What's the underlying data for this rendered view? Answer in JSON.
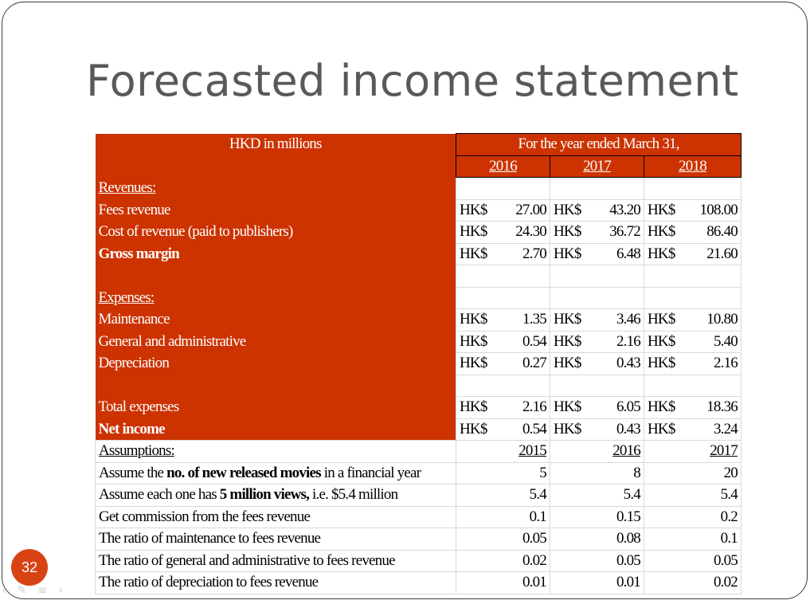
{
  "title": "Forecasted income statement",
  "slide_number": "32",
  "table": {
    "header_label": "HKD in millions",
    "header_period": "For the year ended March 31,",
    "years": [
      "2016",
      "2017",
      "2018"
    ],
    "currency": "HK$",
    "revenues_label": "Revenues:",
    "fees_revenue": {
      "label": "Fees revenue",
      "values": [
        "27.00",
        "43.20",
        "108.00"
      ]
    },
    "cost_of_revenue": {
      "label": "Cost of revenue (paid to publishers)",
      "values": [
        "24.30",
        "36.72",
        "86.40"
      ]
    },
    "gross_margin": {
      "label": "Gross margin",
      "values": [
        "2.70",
        "6.48",
        "21.60"
      ]
    },
    "expenses_label": "Expenses:",
    "maintenance": {
      "label": "Maintenance",
      "values": [
        "1.35",
        "3.46",
        "10.80"
      ]
    },
    "gen_admin": {
      "label": "General and administrative",
      "values": [
        "0.54",
        "2.16",
        "5.40"
      ]
    },
    "depreciation": {
      "label": "Depreciation",
      "values": [
        "0.27",
        "0.43",
        "2.16"
      ]
    },
    "total_expenses": {
      "label": "Total expenses",
      "values": [
        "2.16",
        "6.05",
        "18.36"
      ]
    },
    "net_income": {
      "label": "Net income",
      "values": [
        "0.54",
        "0.43",
        "3.24"
      ]
    }
  },
  "assumptions": {
    "label": "Assumptions:",
    "years": [
      "2015",
      "2016",
      "2017"
    ],
    "new_movies": {
      "pre": "Assume the ",
      "bold": "no. of new released movies",
      "post": " in a financial year",
      "values": [
        "5",
        "8",
        "20"
      ]
    },
    "views": {
      "pre": "Assume each one has ",
      "bold": "5 million views,",
      "post": " i.e. $5.4 million",
      "values": [
        "5.4",
        "5.4",
        "5.4"
      ]
    },
    "commission": {
      "label": "Get commission from the fees revenue",
      "values": [
        "0.1",
        "0.15",
        "0.2"
      ]
    },
    "maint_ratio": {
      "label": "The ratio of maintenance to fees revenue",
      "values": [
        "0.05",
        "0.08",
        "0.1"
      ]
    },
    "ga_ratio": {
      "label": "The ratio of general and administrative to fees revenue",
      "values": [
        "0.02",
        "0.05",
        "0.05"
      ]
    },
    "dep_ratio": {
      "label": "The ratio of depreciation to fees revenue",
      "values": [
        "0.01",
        "0.01",
        "0.02"
      ]
    }
  },
  "colors": {
    "table_red": "#cc3300",
    "badge": "#d84315",
    "title_gray": "#595959"
  }
}
